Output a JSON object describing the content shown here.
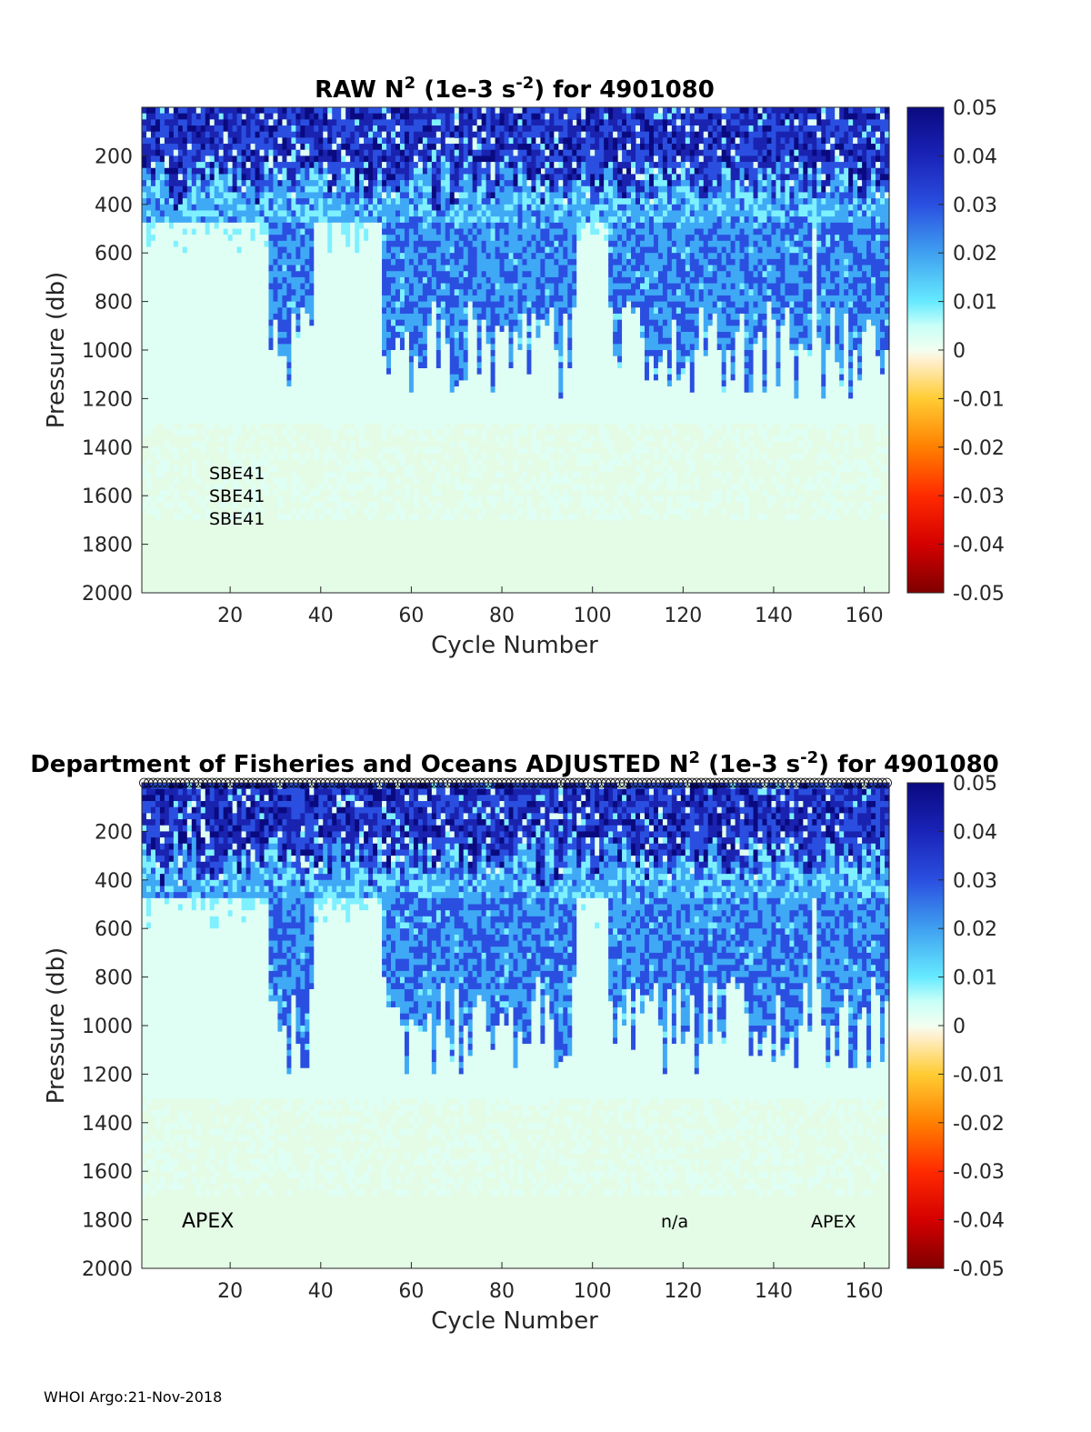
{
  "chart_data": [
    {
      "type": "heatmap",
      "title": {
        "prefix": "RAW N",
        "sup1": "2",
        "middle": " (1e-3 s",
        "sup2": "-2",
        "suffix": ") for 4901080"
      },
      "xlabel": "Cycle Number",
      "ylabel": "Pressure (db)",
      "xlim": [
        1,
        165
      ],
      "ylim": [
        2000,
        0
      ],
      "xticks": [
        "20",
        "40",
        "60",
        "80",
        "100",
        "120",
        "140",
        "160"
      ],
      "yticks": [
        "200",
        "400",
        "600",
        "800",
        "1000",
        "1200",
        "1400",
        "1600",
        "1800",
        "2000"
      ],
      "colorbar": {
        "ticks": [
          "0.05",
          "0.04",
          "0.03",
          "0.02",
          "0.01",
          "0",
          "-0.01",
          "-0.02",
          "-0.03",
          "-0.04",
          "-0.05"
        ],
        "range": [
          -0.05,
          0.05
        ]
      },
      "annotations": [
        "SBE41",
        "SBE41",
        "SBE41"
      ],
      "strong_cycle_bands": [
        [
          29,
          38
        ],
        [
          54,
          96
        ],
        [
          104,
          148
        ],
        [
          150,
          165
        ]
      ],
      "near_surface_strong_depth_db": 350
    },
    {
      "type": "heatmap",
      "title": {
        "prefix": "Department of Fisheries and Oceans  ADJUSTED N",
        "sup1": "2",
        "middle": " (1e-3 s",
        "sup2": "-2",
        "suffix": ") for 4901080"
      },
      "xlabel": "Cycle Number",
      "ylabel": "Pressure (db)",
      "xlim": [
        1,
        165
      ],
      "ylim": [
        2000,
        0
      ],
      "xticks": [
        "20",
        "40",
        "60",
        "80",
        "100",
        "120",
        "140",
        "160"
      ],
      "yticks": [
        "200",
        "400",
        "600",
        "800",
        "1000",
        "1200",
        "1400",
        "1600",
        "1800",
        "2000"
      ],
      "colorbar": {
        "ticks": [
          "0.05",
          "0.04",
          "0.03",
          "0.02",
          "0.01",
          "0",
          "-0.01",
          "-0.02",
          "-0.03",
          "-0.04",
          "-0.05"
        ],
        "range": [
          -0.05,
          0.05
        ]
      },
      "annotations": [
        "APEX",
        "n/a",
        "APEX"
      ],
      "strong_cycle_bands": [
        [
          29,
          38
        ],
        [
          54,
          96
        ],
        [
          104,
          148
        ],
        [
          150,
          165
        ]
      ],
      "near_surface_strong_depth_db": 350
    }
  ],
  "colormap": {
    "stops": [
      "#7f0000",
      "#d40000",
      "#ff4a00",
      "#ffa000",
      "#ffd97a",
      "#fff8e8",
      "#dffff4",
      "#7ff0ff",
      "#3fa9f5",
      "#2a4fe0",
      "#1a23b0",
      "#0a0a80"
    ]
  },
  "footer": "WHOI Argo:21-Nov-2018"
}
